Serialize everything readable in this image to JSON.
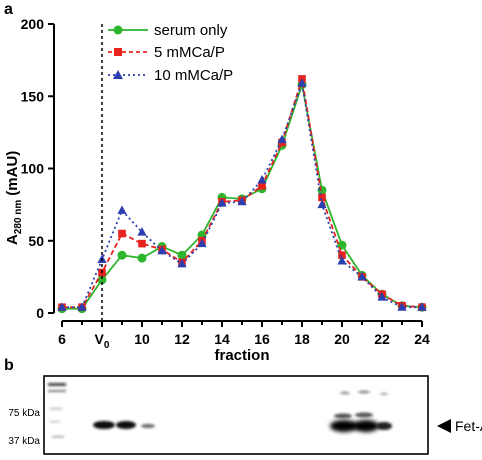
{
  "panels": {
    "a": "a",
    "b": "b"
  },
  "chart_data": {
    "type": "line",
    "xlabel": "fraction",
    "ylabel_main": "A",
    "ylabel_sub": "280 nm",
    "ylabel_unit": "(mAU)",
    "xlim": [
      6,
      24
    ],
    "ylim": [
      0,
      200
    ],
    "xticks": [
      {
        "x": 6,
        "label": "6"
      },
      {
        "x": 8,
        "label": "V",
        "sub": "0"
      },
      {
        "x": 10,
        "label": "10"
      },
      {
        "x": 12,
        "label": "12"
      },
      {
        "x": 14,
        "label": "14"
      },
      {
        "x": 16,
        "label": "16"
      },
      {
        "x": 18,
        "label": "18"
      },
      {
        "x": 20,
        "label": "20"
      },
      {
        "x": 22,
        "label": "22"
      },
      {
        "x": 24,
        "label": "24"
      }
    ],
    "yticks": [
      0,
      50,
      100,
      150,
      200
    ],
    "void_volume_x": 8,
    "legend_position": "top-left",
    "x": [
      6,
      7,
      8,
      9,
      10,
      11,
      12,
      13,
      14,
      15,
      16,
      17,
      18,
      19,
      20,
      21,
      22,
      23,
      24
    ],
    "series": [
      {
        "name": "serum only",
        "color": "#2db52d",
        "marker": "circle",
        "dash": "solid",
        "values": [
          3,
          3,
          23,
          40,
          38,
          46,
          40,
          54,
          80,
          79,
          86,
          116,
          158,
          85,
          47,
          26,
          13,
          5,
          4
        ]
      },
      {
        "name": "5 mMCa/P",
        "color": "#e8231e",
        "marker": "square",
        "dash": "dashed",
        "values": [
          4,
          4,
          28,
          55,
          48,
          44,
          35,
          50,
          77,
          78,
          88,
          118,
          162,
          80,
          40,
          25,
          13,
          5,
          4
        ]
      },
      {
        "name": "10 mMCa/P",
        "color": "#2c3fb0",
        "marker": "triangle",
        "dash": "dotted",
        "values": [
          4,
          4,
          37,
          71,
          56,
          43,
          34,
          48,
          76,
          77,
          92,
          120,
          159,
          75,
          36,
          25,
          11,
          4,
          4
        ]
      }
    ]
  },
  "blot": {
    "markers": [
      "75 kDa",
      "37 kDa"
    ],
    "band_label": "Fet-A"
  }
}
